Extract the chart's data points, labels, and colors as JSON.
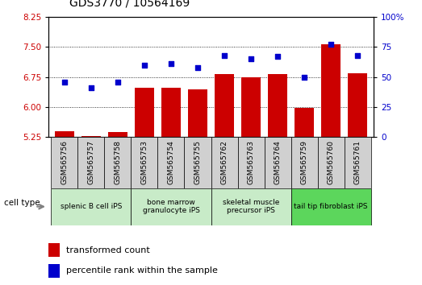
{
  "title": "GDS3770 / 10564169",
  "samples": [
    "GSM565756",
    "GSM565757",
    "GSM565758",
    "GSM565753",
    "GSM565754",
    "GSM565755",
    "GSM565762",
    "GSM565763",
    "GSM565764",
    "GSM565759",
    "GSM565760",
    "GSM565761"
  ],
  "transformed_count": [
    5.38,
    5.27,
    5.37,
    6.47,
    6.48,
    6.43,
    6.82,
    6.75,
    6.82,
    5.97,
    7.57,
    6.85
  ],
  "percentile_rank": [
    46,
    41,
    46,
    60,
    61,
    58,
    68,
    65,
    67,
    50,
    77,
    68
  ],
  "cell_types": [
    {
      "label": "splenic B cell iPS",
      "start": 0,
      "end": 3,
      "color": "#c8ebc8"
    },
    {
      "label": "bone marrow\ngranulocyte iPS",
      "start": 3,
      "end": 6,
      "color": "#c8ebc8"
    },
    {
      "label": "skeletal muscle\nprecursor iPS",
      "start": 6,
      "end": 9,
      "color": "#c8ebc8"
    },
    {
      "label": "tail tip fibroblast iPS",
      "start": 9,
      "end": 12,
      "color": "#5cd65c"
    }
  ],
  "bar_color": "#cc0000",
  "dot_color": "#0000cc",
  "ylim_left": [
    5.25,
    8.25
  ],
  "ylim_right": [
    0,
    100
  ],
  "yticks_left": [
    5.25,
    6.0,
    6.75,
    7.5,
    8.25
  ],
  "yticks_right": [
    0,
    25,
    50,
    75,
    100
  ],
  "bar_width": 0.7,
  "legend_labels": [
    "transformed count",
    "percentile rank within the sample"
  ],
  "cell_type_label": "cell type",
  "left_color": "#cc0000",
  "right_color": "#0000cc",
  "gray_box_color": "#d0d0d0",
  "sample_fontsize": 6.5,
  "title_fontsize": 10
}
